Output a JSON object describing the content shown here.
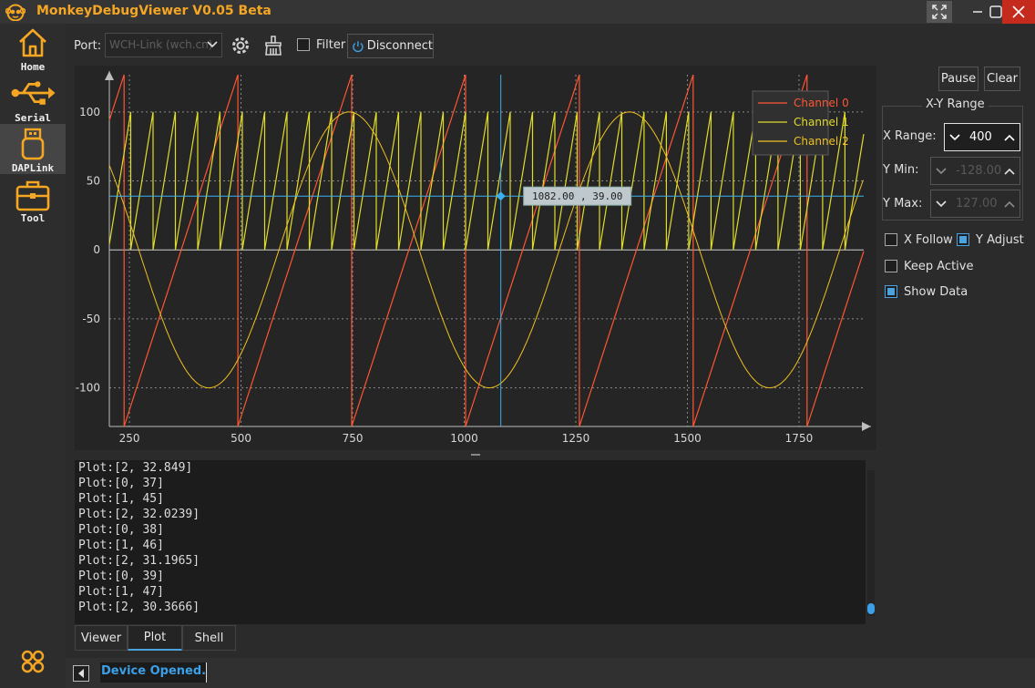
{
  "window": {
    "title": "MonkeyDebugViewer V0.05 Beta",
    "accent": "#f5a623"
  },
  "sidebar": {
    "items": [
      {
        "label": "Home",
        "icon": "home-icon"
      },
      {
        "label": "Serial",
        "icon": "usb-icon"
      },
      {
        "label": "DAPLink",
        "icon": "usb-stick-icon"
      },
      {
        "label": "Tool",
        "icon": "toolbox-icon"
      }
    ],
    "active": "DAPLink"
  },
  "toolbar": {
    "port_label": "Port:",
    "port_value": "WCH-Link (wch.cn)",
    "filter_label": "Filter",
    "filter_checked": false,
    "disconnect_label": "Disconnect"
  },
  "plot": {
    "cursor_readout": "1082.00 , 39.00",
    "cursor": {
      "x": 1082,
      "y": 39
    },
    "legend": [
      {
        "name": "Channel 0",
        "color": "#ff5533"
      },
      {
        "name": "Channel 1",
        "color": "#e0dc2a"
      },
      {
        "name": "Channel 2",
        "color": "#f0c020"
      }
    ]
  },
  "chart_data": {
    "type": "line",
    "xlim": [
      205,
      1895
    ],
    "ylim": [
      -128,
      127
    ],
    "x_ticks": [
      250,
      500,
      750,
      1000,
      1250,
      1500,
      1750
    ],
    "y_ticks": [
      100,
      50,
      0,
      -50,
      -100
    ],
    "x_tick_labels": [
      "250",
      "500",
      "750",
      "1000",
      "1250",
      "1500",
      "1750"
    ],
    "y_tick_labels": [
      "100",
      "50",
      "0",
      "-50",
      "-100"
    ],
    "grid": true,
    "legend_position": "top-right",
    "series": [
      {
        "name": "Channel 0",
        "kind": "sawtooth",
        "min": -128,
        "max": 127,
        "period": 255,
        "rise_at": 238,
        "color": "#ff5533"
      },
      {
        "name": "Channel 1",
        "kind": "sawtooth",
        "min": 0,
        "max": 100,
        "period": 50,
        "rise_at": 203,
        "color": "#e0dc2a"
      },
      {
        "name": "Channel 2",
        "kind": "sine",
        "amplitude": 100,
        "period": 628,
        "peak_at": 742,
        "color": "#f0c020"
      }
    ]
  },
  "console": {
    "lines": [
      "Plot:[2, 32.849]",
      "Plot:[0, 37]",
      "Plot:[1, 45]",
      "Plot:[2, 32.0239]",
      "Plot:[0, 38]",
      "Plot:[1, 46]",
      "Plot:[2, 31.1965]",
      "Plot:[0, 39]",
      "Plot:[1, 47]",
      "Plot:[2, 30.3666]"
    ]
  },
  "tabs": [
    {
      "label": "Viewer",
      "active": false
    },
    {
      "label": "Plot",
      "active": true
    },
    {
      "label": "Shell",
      "active": false
    }
  ],
  "right_panel": {
    "pause_label": "Pause",
    "clear_label": "Clear",
    "group_title": "X-Y Range",
    "x_range_label": "X Range:",
    "x_range_value": "400",
    "y_min_label": "Y Min:",
    "y_min_value": "-128.00",
    "y_max_label": "Y Max:",
    "y_max_value": "127.00",
    "x_follow_label": "X Follow",
    "x_follow_checked": false,
    "y_adjust_label": "Y Adjust",
    "y_adjust_checked": true,
    "keep_active_label": "Keep Active",
    "keep_active_checked": false,
    "show_data_label": "Show Data",
    "show_data_checked": true
  },
  "status": {
    "text": "Device Opened."
  }
}
